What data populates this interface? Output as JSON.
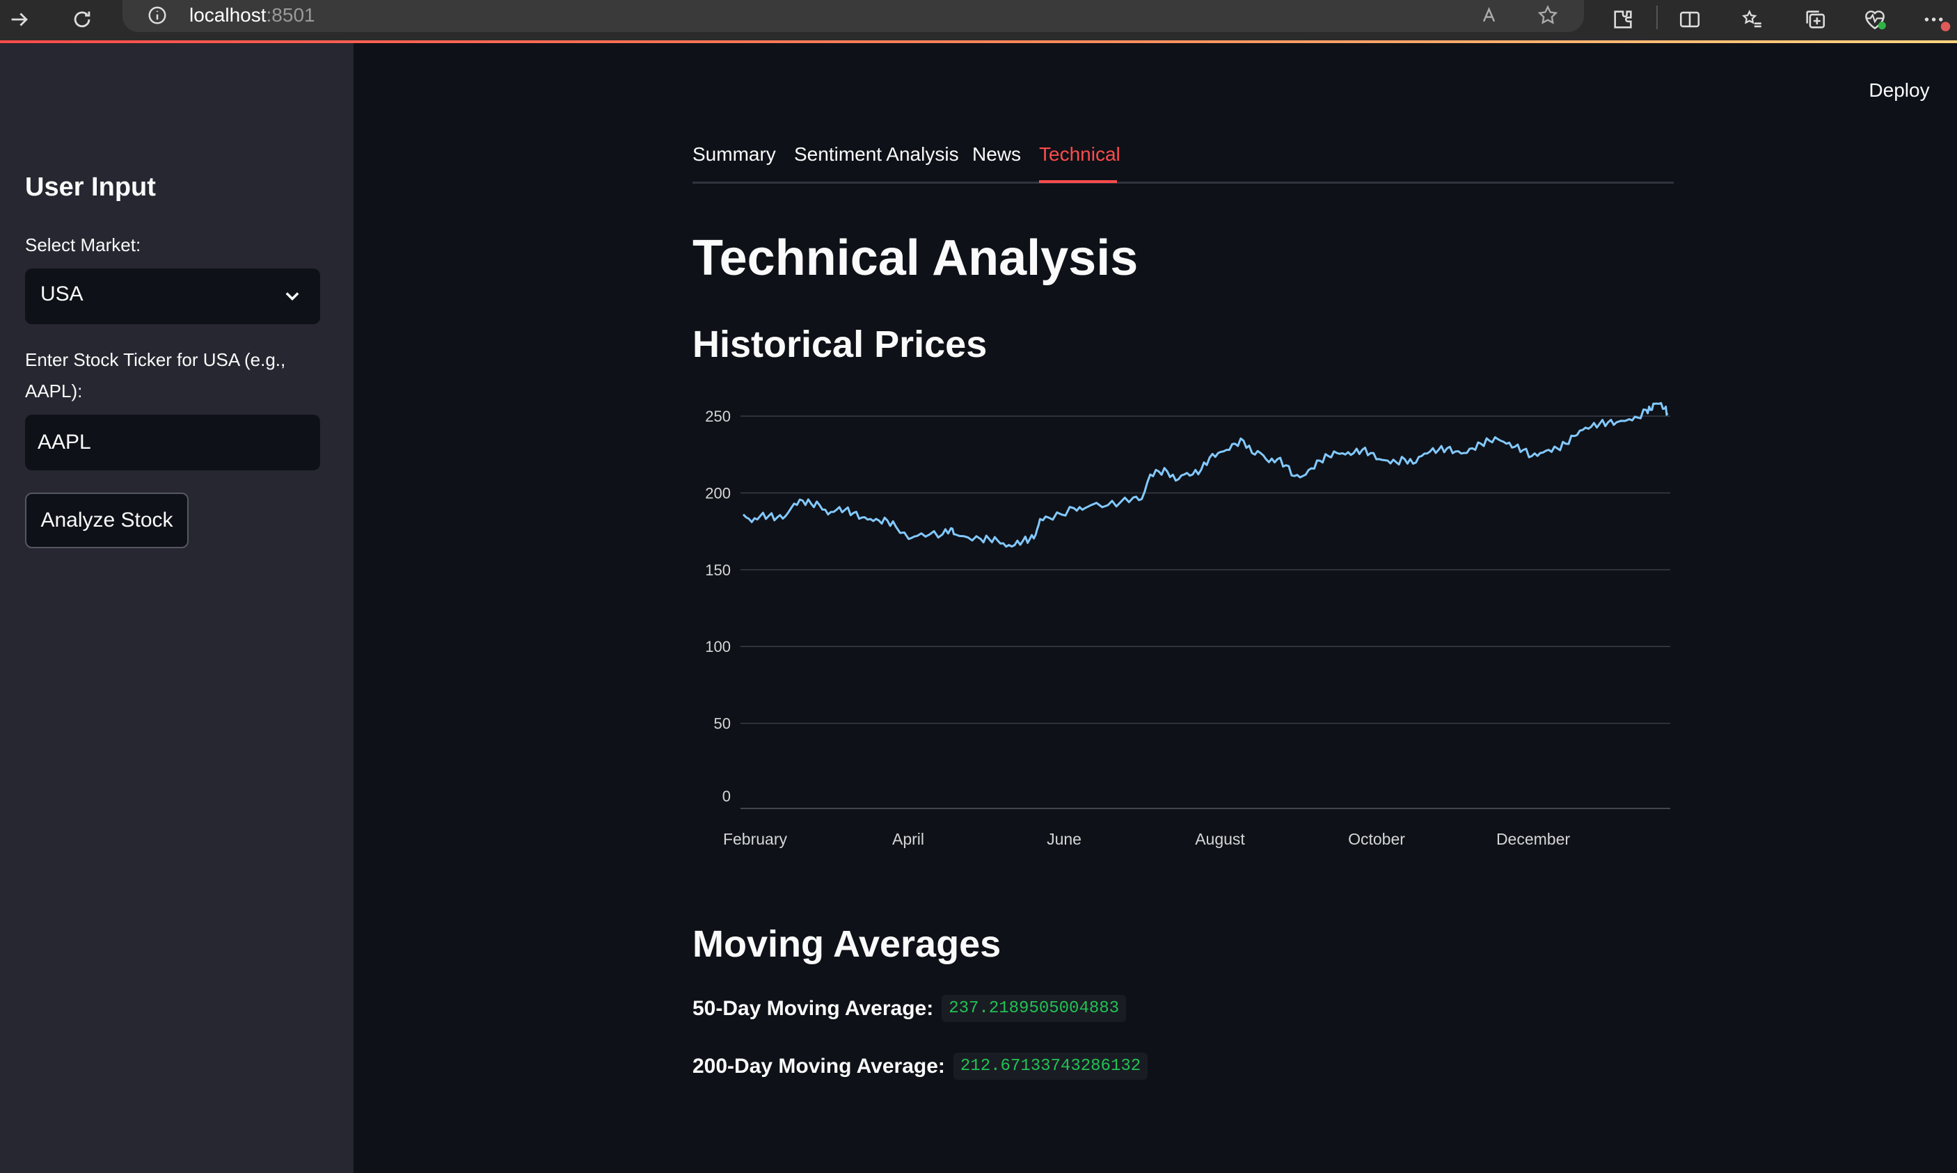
{
  "browser": {
    "url_host": "localhost",
    "url_port": ":8501"
  },
  "sidebar": {
    "title": "User Input",
    "market_label": "Select Market:",
    "market_value": "USA",
    "ticker_label_line1": "Enter Stock Ticker for USA (e.g.,",
    "ticker_label_line2": "AAPL):",
    "ticker_value": "AAPL",
    "analyze_button": "Analyze Stock"
  },
  "header": {
    "deploy_label": "Deploy"
  },
  "tabs": [
    {
      "label": "Summary",
      "active": false
    },
    {
      "label": "Sentiment Analysis",
      "active": false
    },
    {
      "label": "News",
      "active": false
    },
    {
      "label": "Technical",
      "active": true
    }
  ],
  "main": {
    "title": "Technical Analysis",
    "historical_heading": "Historical Prices",
    "ma_heading": "Moving Averages",
    "ma50_label": "50-Day Moving Average:",
    "ma50_value": "237.2189505004883",
    "ma200_label": "200-Day Moving Average:",
    "ma200_value": "212.67133743286132"
  },
  "colors": {
    "accent": "#ff4b4b",
    "line": "#83c9ff",
    "code_green": "#21c354"
  },
  "chart_data": {
    "type": "line",
    "title": "",
    "xlabel": "",
    "ylabel": "",
    "ylim": [
      0,
      260
    ],
    "yticks": [
      0,
      50,
      100,
      150,
      200,
      250
    ],
    "xticks": [
      "February",
      "April",
      "June",
      "August",
      "October",
      "December"
    ],
    "grid": true,
    "legend": "none",
    "series": [
      {
        "values": [
          [
            0,
            186
          ],
          [
            0.1,
            181
          ],
          [
            0.2,
            185
          ],
          [
            0.3,
            185
          ],
          [
            0.4,
            184
          ],
          [
            0.5,
            185
          ],
          [
            0.6,
            193
          ],
          [
            0.7,
            195
          ],
          [
            0.8,
            193
          ],
          [
            0.9,
            192
          ],
          [
            1,
            186
          ],
          [
            1.1,
            189
          ],
          [
            1.2,
            189
          ],
          [
            1.3,
            187
          ],
          [
            1.4,
            184
          ],
          [
            1.5,
            183
          ],
          [
            1.6,
            182
          ],
          [
            1.7,
            182
          ],
          [
            1.8,
            178
          ],
          [
            1.95,
            170
          ],
          [
            2.05,
            172
          ],
          [
            2.2,
            173
          ],
          [
            2.35,
            173
          ],
          [
            2.45,
            177
          ],
          [
            2.5,
            173
          ],
          [
            2.65,
            171
          ],
          [
            2.8,
            170
          ],
          [
            2.9,
            170
          ],
          [
            3,
            169
          ],
          [
            3.1,
            165
          ],
          [
            3.2,
            166
          ],
          [
            3.3,
            169
          ],
          [
            3.38,
            170
          ],
          [
            3.45,
            173
          ],
          [
            3.5,
            183
          ],
          [
            3.6,
            184
          ],
          [
            3.75,
            186
          ],
          [
            3.9,
            190
          ],
          [
            4,
            189
          ],
          [
            4.1,
            192
          ],
          [
            4.3,
            192
          ],
          [
            4.45,
            194
          ],
          [
            4.6,
            197
          ],
          [
            4.7,
            196
          ],
          [
            4.8,
            212
          ],
          [
            4.9,
            214
          ],
          [
            5.0,
            214
          ],
          [
            5.1,
            208
          ],
          [
            5.2,
            212
          ],
          [
            5.3,
            212
          ],
          [
            5.4,
            215
          ],
          [
            5.5,
            223
          ],
          [
            5.6,
            226
          ],
          [
            5.7,
            228
          ],
          [
            5.8,
            232
          ],
          [
            5.9,
            234
          ],
          [
            6.0,
            226
          ],
          [
            6.1,
            226
          ],
          [
            6.2,
            220
          ],
          [
            6.3,
            222
          ],
          [
            6.4,
            218
          ],
          [
            6.5,
            211
          ],
          [
            6.6,
            211
          ],
          [
            6.7,
            216
          ],
          [
            6.8,
            221
          ],
          [
            6.9,
            224
          ],
          [
            7.0,
            226
          ],
          [
            7.1,
            225
          ],
          [
            7.2,
            226
          ],
          [
            7.3,
            228
          ],
          [
            7.4,
            226
          ],
          [
            7.5,
            222
          ],
          [
            7.6,
            221
          ],
          [
            7.7,
            220
          ],
          [
            7.8,
            222
          ],
          [
            7.9,
            219
          ],
          [
            8.0,
            224
          ],
          [
            8.1,
            227
          ],
          [
            8.2,
            228
          ],
          [
            8.3,
            229
          ],
          [
            8.4,
            227
          ],
          [
            8.5,
            226
          ],
          [
            8.6,
            229
          ],
          [
            8.7,
            232
          ],
          [
            8.8,
            234
          ],
          [
            8.9,
            235
          ],
          [
            9.0,
            232
          ],
          [
            9.1,
            230
          ],
          [
            9.2,
            228
          ],
          [
            9.3,
            224
          ],
          [
            9.4,
            226
          ],
          [
            9.5,
            228
          ],
          [
            9.6,
            229
          ],
          [
            9.7,
            232
          ],
          [
            9.8,
            237
          ],
          [
            9.9,
            241
          ],
          [
            10.0,
            243
          ],
          [
            10.1,
            245
          ],
          [
            10.2,
            246
          ],
          [
            10.3,
            246
          ],
          [
            10.45,
            248
          ],
          [
            10.55,
            249
          ],
          [
            10.65,
            254
          ],
          [
            10.7,
            254
          ],
          [
            10.75,
            258
          ],
          [
            10.8,
            258
          ],
          [
            10.87,
            255
          ],
          [
            10.9,
            252
          ]
        ]
      }
    ]
  }
}
